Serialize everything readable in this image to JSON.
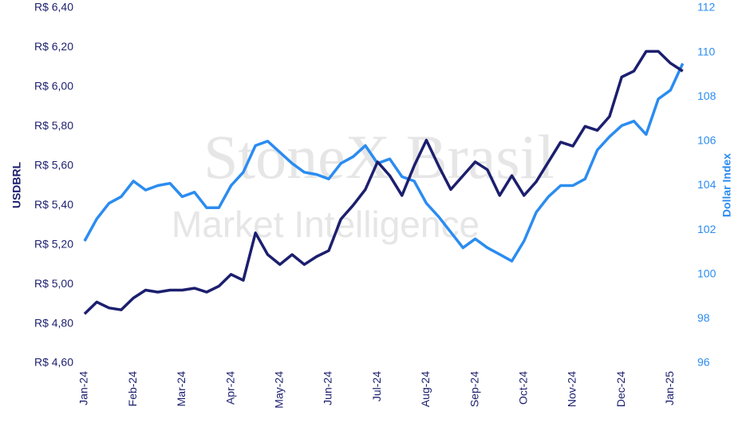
{
  "chart_data": {
    "type": "line",
    "watermark": [
      "StoneX Brasil",
      "Market Intelligence"
    ],
    "y_label": "USDBRL",
    "y2_label": "Dollar Index",
    "categories": [
      "Jan-24",
      null,
      null,
      null,
      "Feb-24",
      null,
      null,
      null,
      "Mar-24",
      null,
      null,
      null,
      "Apr-24",
      null,
      null,
      null,
      "May-24",
      null,
      null,
      null,
      "Jun-24",
      null,
      null,
      null,
      "Jul-24",
      null,
      null,
      null,
      "Aug-24",
      null,
      null,
      null,
      "Sep-24",
      null,
      null,
      null,
      "Oct-24",
      null,
      null,
      null,
      "Nov-24",
      null,
      null,
      null,
      "Dec-24",
      null,
      null,
      null,
      "Jan-25",
      null
    ],
    "series": [
      {
        "name": "USDBRL",
        "color": "#1c1f6e",
        "axis": "y",
        "values": [
          4.85,
          4.91,
          4.88,
          4.87,
          4.93,
          4.97,
          4.96,
          4.97,
          4.97,
          4.98,
          4.96,
          4.99,
          5.05,
          5.02,
          5.26,
          5.15,
          5.1,
          5.15,
          5.1,
          5.14,
          5.17,
          5.33,
          5.4,
          5.48,
          5.62,
          5.55,
          5.45,
          5.6,
          5.73,
          5.6,
          5.48,
          5.55,
          5.62,
          5.58,
          5.45,
          5.55,
          5.45,
          5.52,
          5.62,
          5.72,
          5.7,
          5.8,
          5.78,
          5.85,
          6.05,
          6.08,
          6.18,
          6.18,
          6.12,
          6.08
        ]
      },
      {
        "name": "Dollar Index",
        "color": "#2b8cf0",
        "axis": "y2",
        "values": [
          101.5,
          102.5,
          103.2,
          103.5,
          104.2,
          103.8,
          104.0,
          104.1,
          103.5,
          103.7,
          103.0,
          103.0,
          104.0,
          104.6,
          105.8,
          106.0,
          105.5,
          105.0,
          104.6,
          104.5,
          104.3,
          105.0,
          105.3,
          105.8,
          105.0,
          105.2,
          104.4,
          104.2,
          103.2,
          102.6,
          101.9,
          101.2,
          101.6,
          101.2,
          100.9,
          100.6,
          101.5,
          102.8,
          103.5,
          104.0,
          104.0,
          104.3,
          105.6,
          106.2,
          106.7,
          106.9,
          106.3,
          107.9,
          108.3,
          109.5
        ]
      }
    ],
    "ylim": [
      4.6,
      6.4
    ],
    "yticks": [
      {
        "value": 4.6,
        "label": "R$ 4,60"
      },
      {
        "value": 4.8,
        "label": "R$ 4,80"
      },
      {
        "value": 5.0,
        "label": "R$ 5,00"
      },
      {
        "value": 5.2,
        "label": "R$ 5,20"
      },
      {
        "value": 5.4,
        "label": "R$ 5,40"
      },
      {
        "value": 5.6,
        "label": "R$ 5,60"
      },
      {
        "value": 5.8,
        "label": "R$ 5,80"
      },
      {
        "value": 6.0,
        "label": "R$ 6,00"
      },
      {
        "value": 6.2,
        "label": "R$ 6,20"
      },
      {
        "value": 6.4,
        "label": "R$ 6,40"
      }
    ],
    "y2lim": [
      96,
      112
    ],
    "y2ticks": [
      96,
      98,
      100,
      102,
      104,
      106,
      108,
      110,
      112
    ],
    "grid": false
  }
}
